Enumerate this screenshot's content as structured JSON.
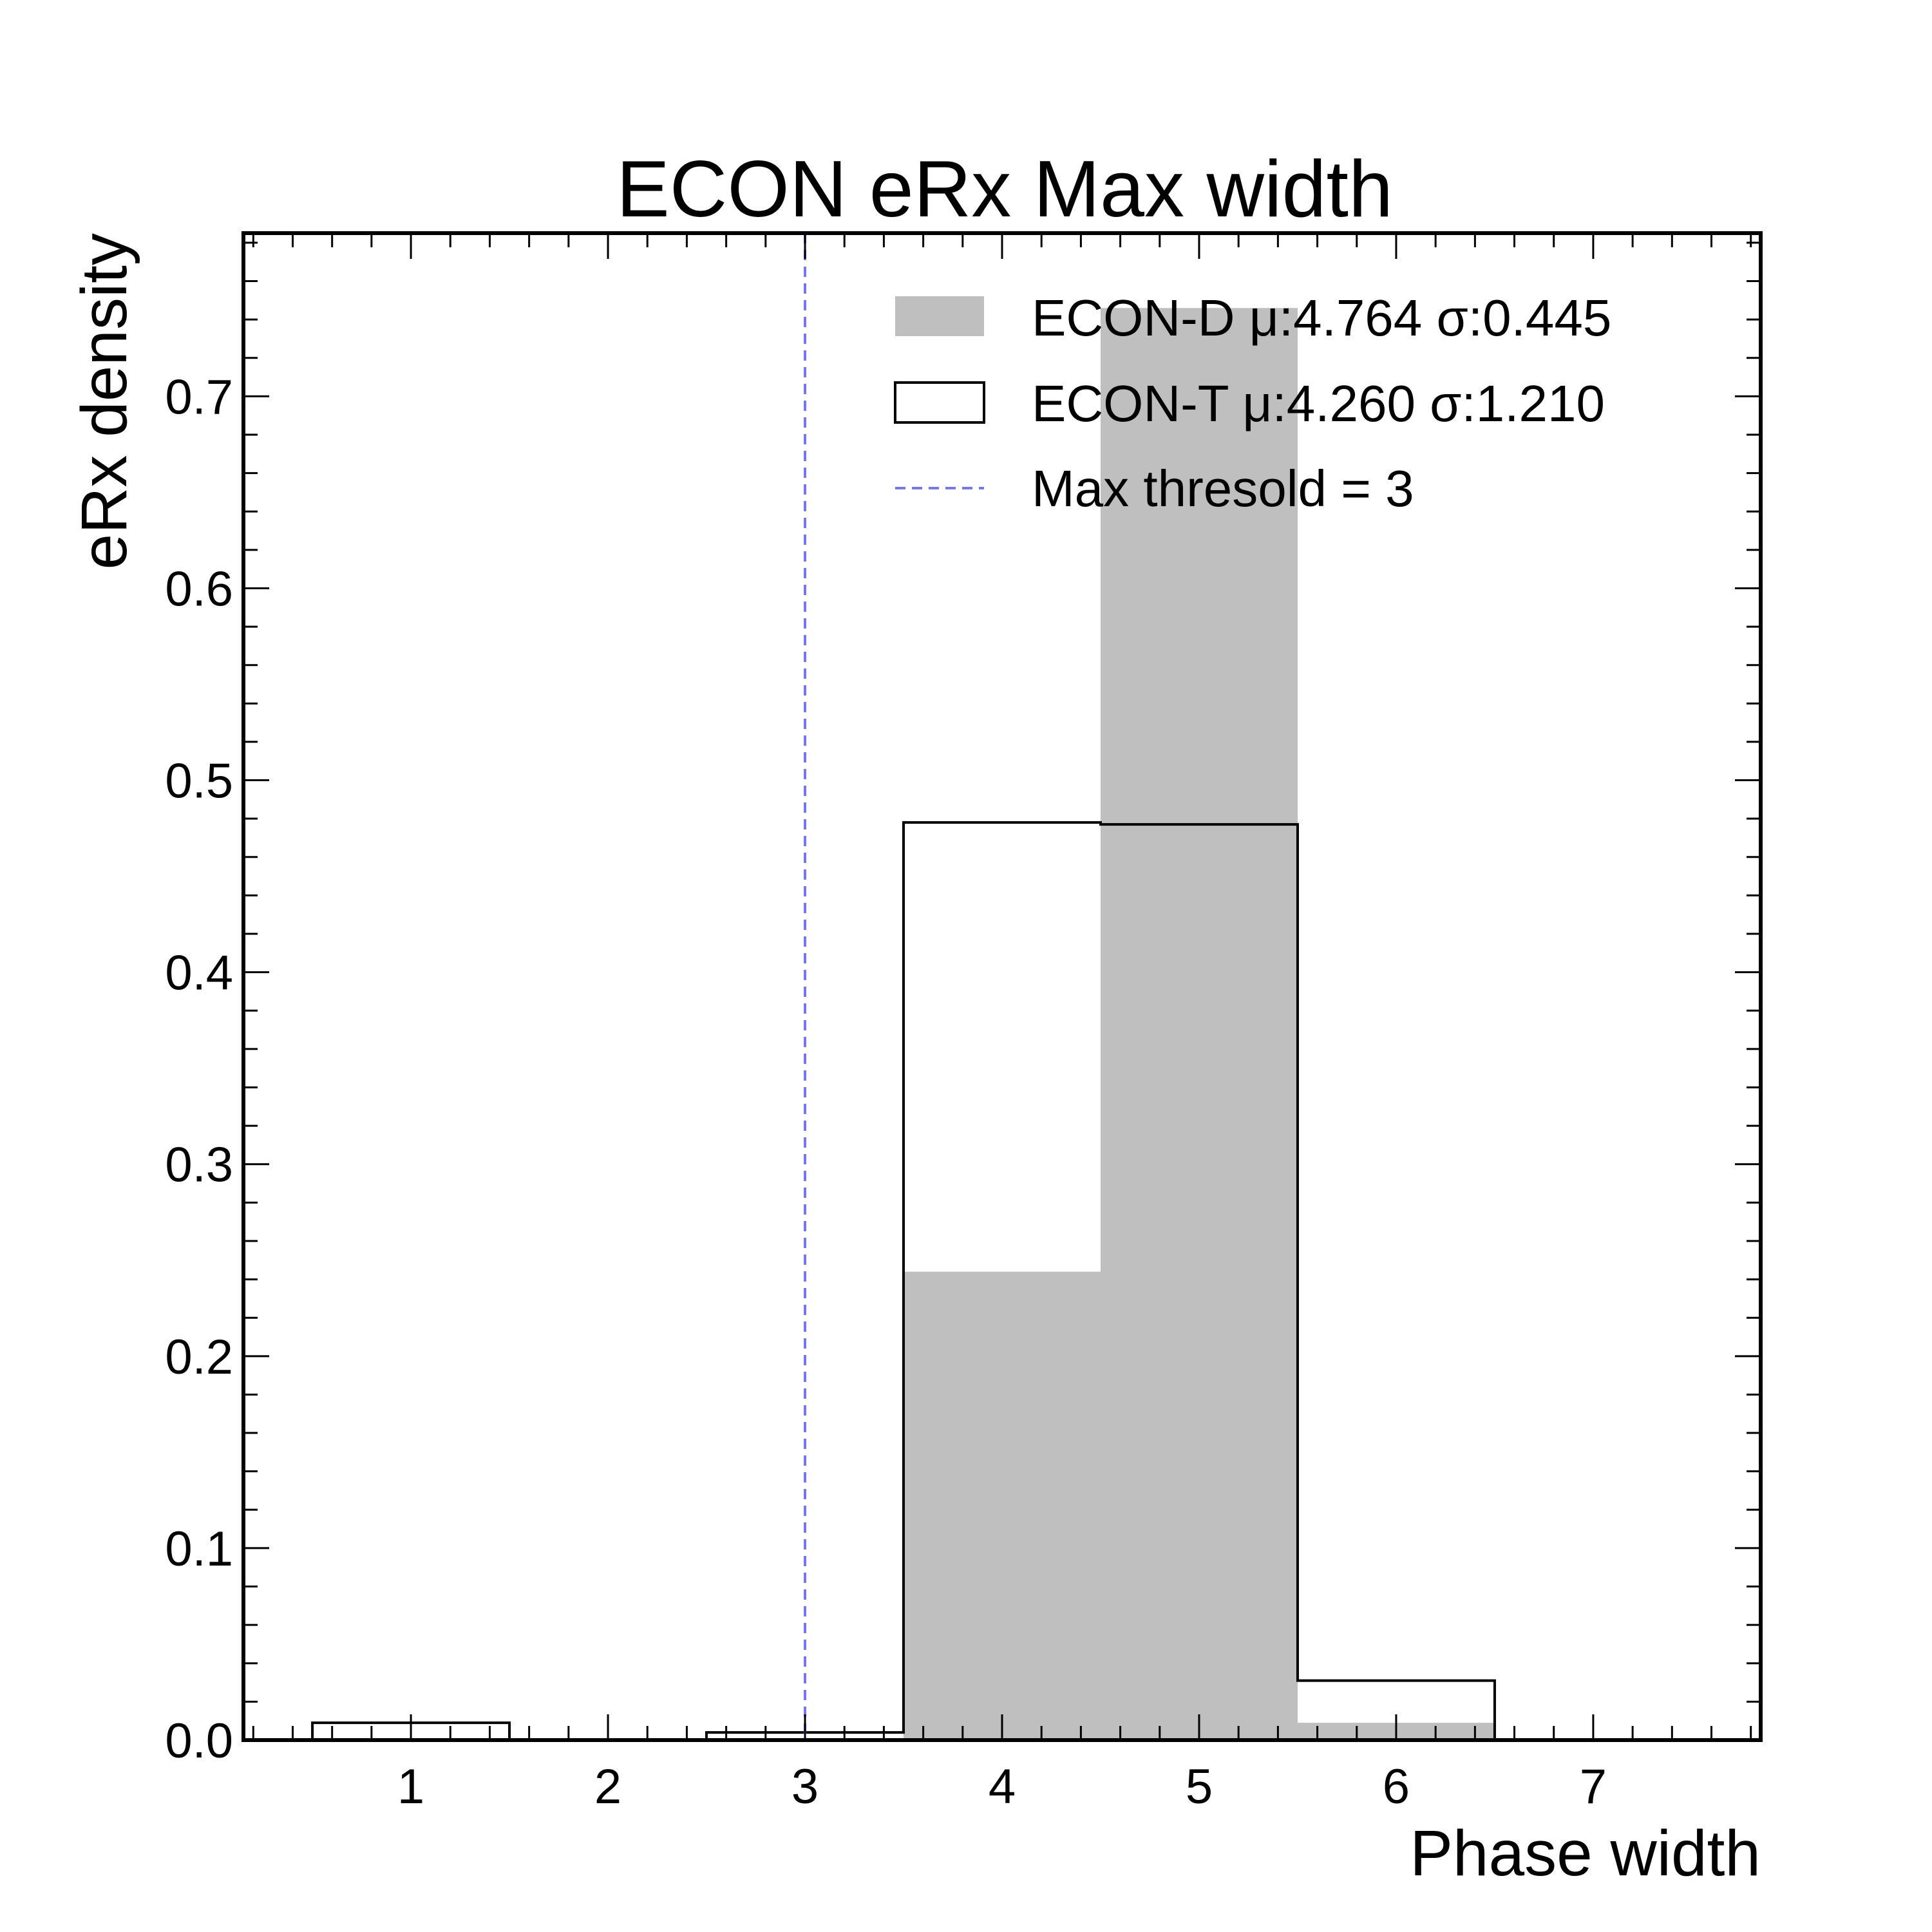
{
  "chart_data": {
    "type": "bar",
    "title": "ECON eRx Max width",
    "xlabel": "Phase width",
    "ylabel": "eRx density",
    "xlim": [
      0.15,
      7.85
    ],
    "ylim": [
      0.0,
      0.785
    ],
    "xticks": [
      1,
      2,
      3,
      4,
      5,
      6,
      7
    ],
    "xtick_labels": [
      "1",
      "2",
      "3",
      "4",
      "5",
      "6",
      "7"
    ],
    "yticks": [
      0.0,
      0.1,
      0.2,
      0.3,
      0.4,
      0.5,
      0.6,
      0.7
    ],
    "ytick_labels": [
      "0.0",
      "0.1",
      "0.2",
      "0.3",
      "0.4",
      "0.5",
      "0.6",
      "0.7"
    ],
    "grid": false,
    "legend_position": "top-right",
    "bin_edges": [
      0.5,
      1.5,
      2.5,
      3.5,
      4.5,
      5.5,
      6.5
    ],
    "series": [
      {
        "name": "ECON-D μ:4.764 σ:0.445",
        "style": "filled",
        "color": "#bfbfbf",
        "values": [
          0.0,
          0.0,
          0.0,
          0.244,
          0.746,
          0.009
        ]
      },
      {
        "name": "ECON-T μ:4.260 σ:1.210",
        "style": "step",
        "color": "#000000",
        "values": [
          0.009,
          0.0,
          0.004,
          0.478,
          0.477,
          0.031
        ]
      }
    ],
    "vlines": [
      {
        "name": "Max thresold = 3",
        "x": 3,
        "color": "#7777ee",
        "style": "dashed"
      }
    ]
  }
}
